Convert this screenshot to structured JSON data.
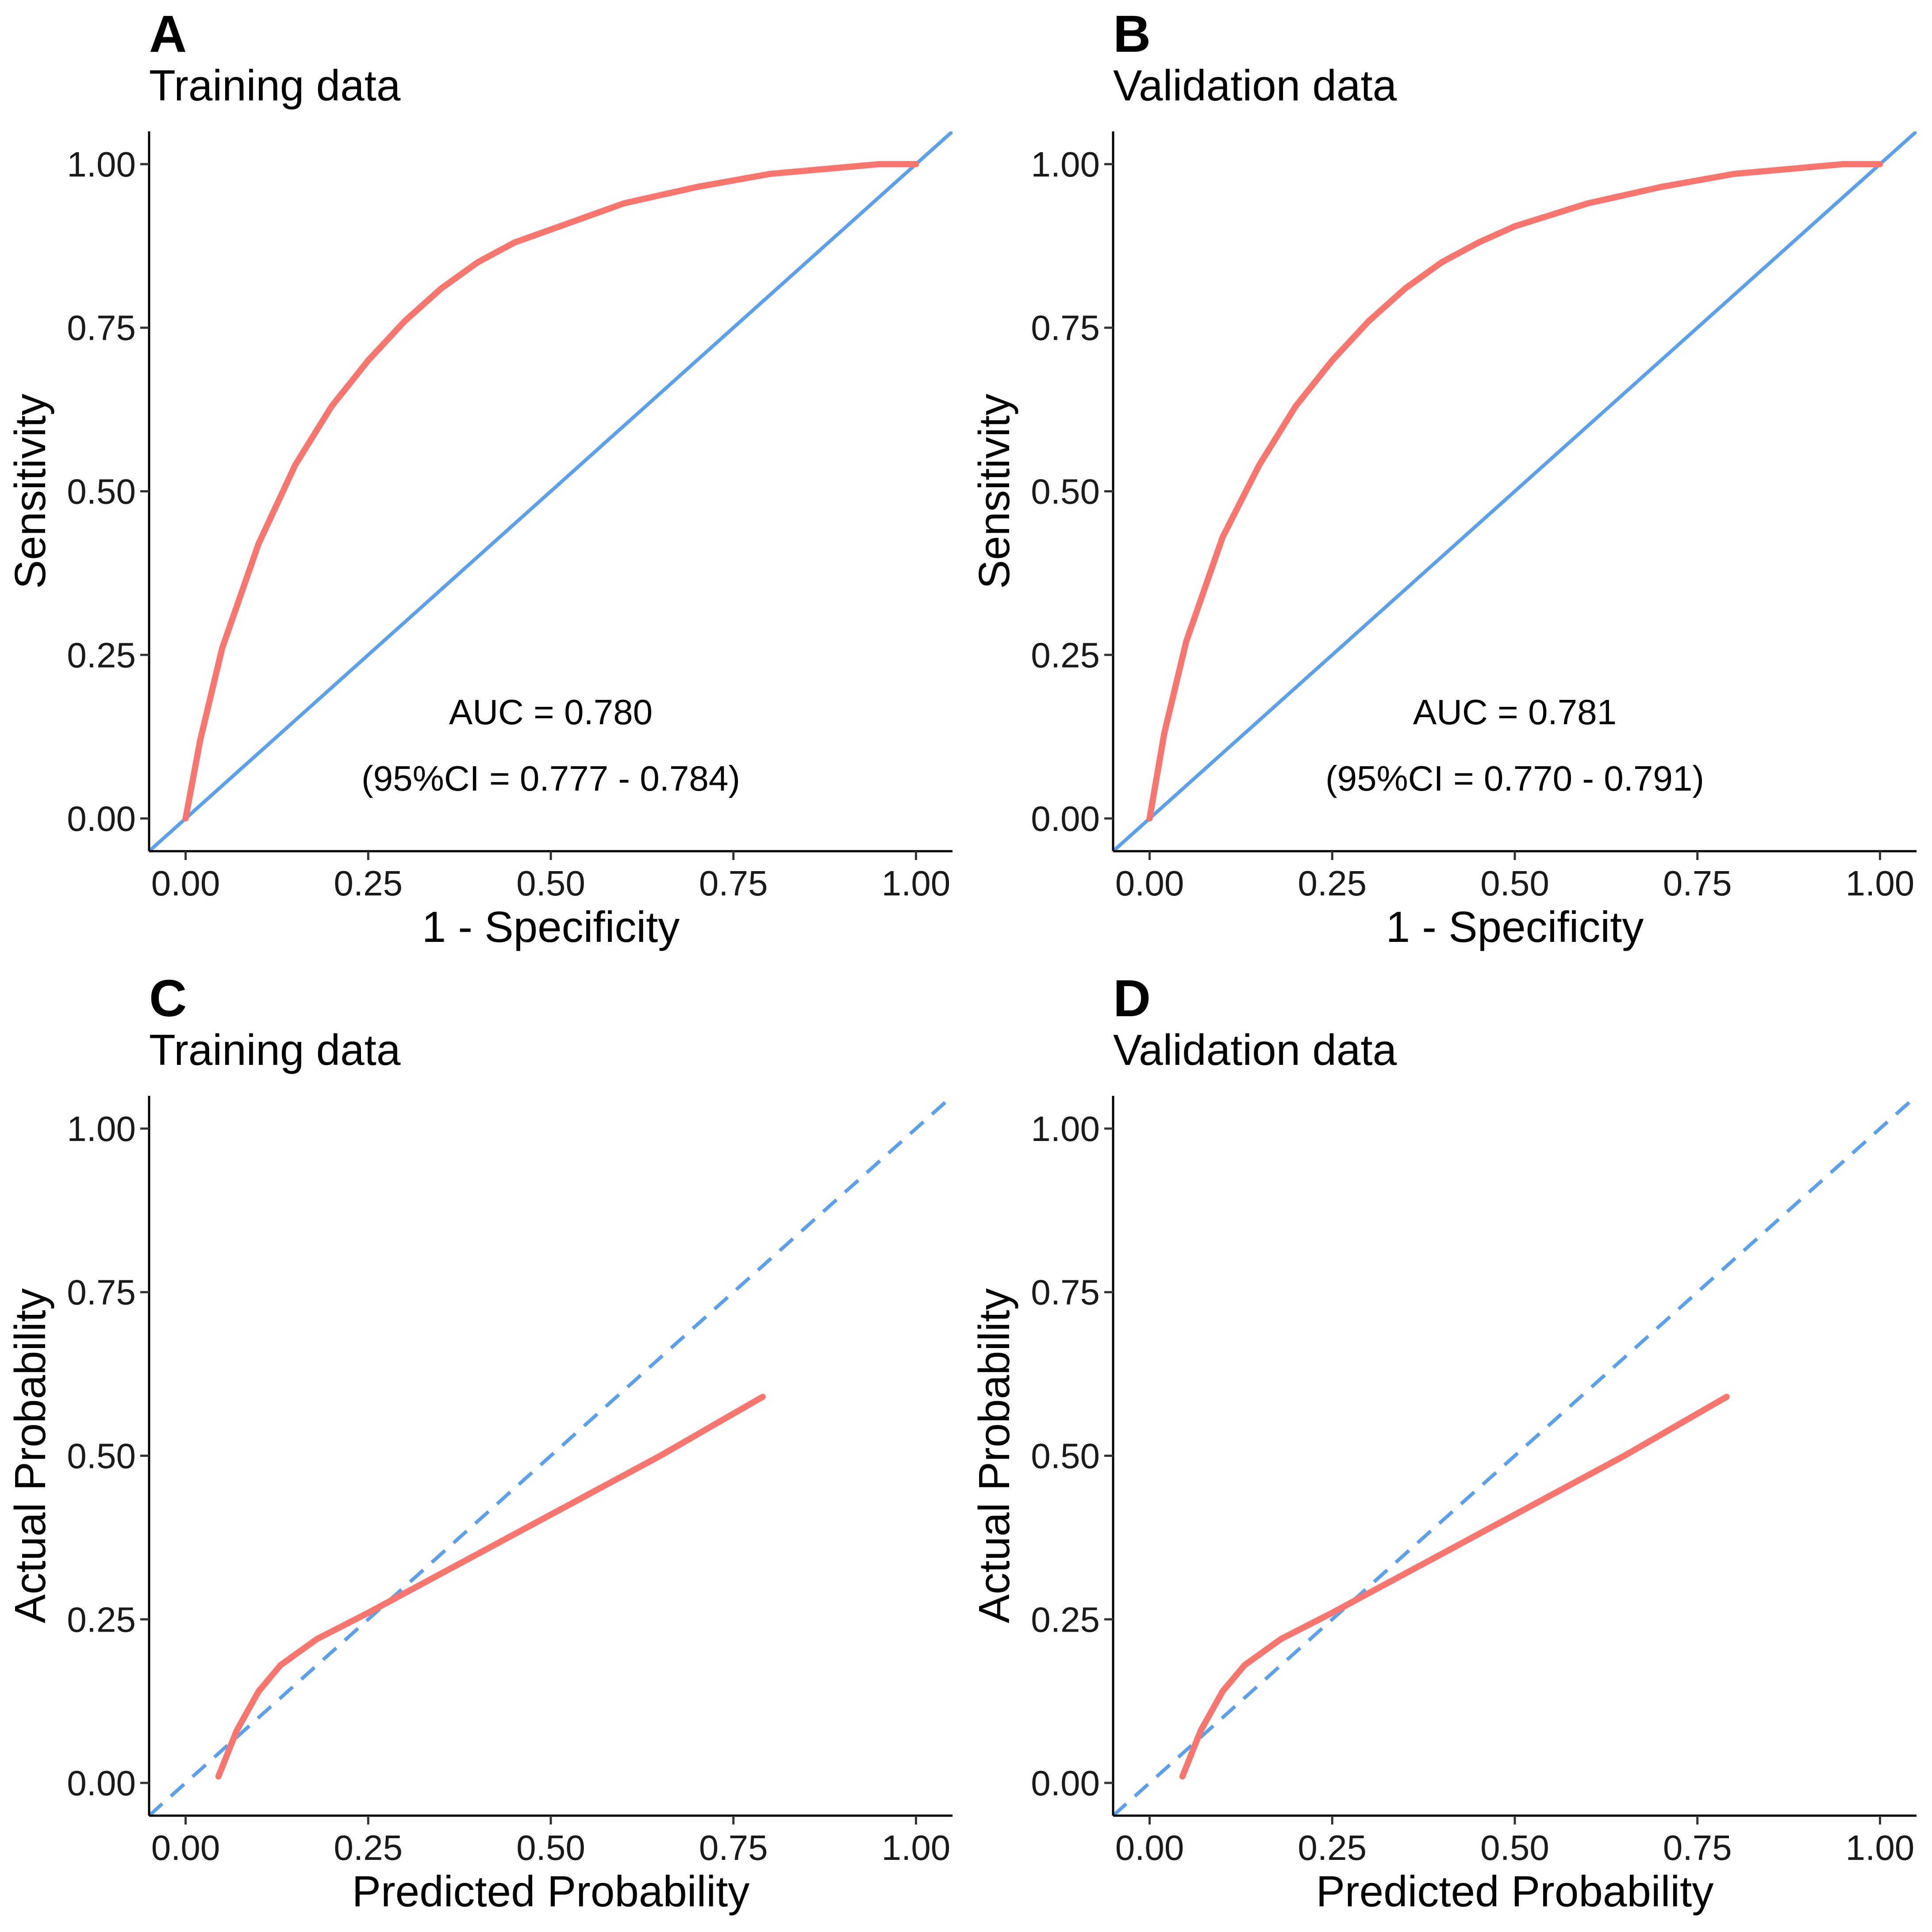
{
  "chart_data": [
    {
      "panel": "A",
      "title": "Training data",
      "type": "line",
      "xlabel": "1 - Specificity",
      "ylabel": "Sensitivity",
      "xlim": [
        -0.05,
        1.05
      ],
      "ylim": [
        -0.05,
        1.05
      ],
      "xticks": [
        "0.00",
        "0.25",
        "0.50",
        "0.75",
        "1.00"
      ],
      "yticks": [
        "0.00",
        "0.25",
        "0.50",
        "0.75",
        "1.00"
      ],
      "annotations": [
        "AUC = 0.780",
        "(95%CI = 0.777 - 0.784)"
      ],
      "reference_line": {
        "style": "solid",
        "x": [
          -0.05,
          1.05
        ],
        "y": [
          -0.05,
          1.05
        ],
        "color": "#5aa0ea"
      },
      "series": [
        {
          "name": "ROC",
          "color": "#f8766d",
          "x": [
            0,
            0.02,
            0.05,
            0.1,
            0.15,
            0.2,
            0.25,
            0.3,
            0.35,
            0.4,
            0.45,
            0.5,
            0.6,
            0.7,
            0.8,
            0.9,
            0.95,
            1.0
          ],
          "y": [
            0,
            0.12,
            0.26,
            0.42,
            0.54,
            0.63,
            0.7,
            0.76,
            0.81,
            0.85,
            0.88,
            0.9,
            0.94,
            0.965,
            0.985,
            0.995,
            1.0,
            1.0
          ]
        }
      ]
    },
    {
      "panel": "B",
      "title": "Validation data",
      "type": "line",
      "xlabel": "1 - Specificity",
      "ylabel": "Sensitivity",
      "xlim": [
        -0.05,
        1.05
      ],
      "ylim": [
        -0.05,
        1.05
      ],
      "xticks": [
        "0.00",
        "0.25",
        "0.50",
        "0.75",
        "1.00"
      ],
      "yticks": [
        "0.00",
        "0.25",
        "0.50",
        "0.75",
        "1.00"
      ],
      "annotations": [
        "AUC = 0.781",
        "(95%CI = 0.770 - 0.791)"
      ],
      "reference_line": {
        "style": "solid",
        "x": [
          -0.05,
          1.05
        ],
        "y": [
          -0.05,
          1.05
        ],
        "color": "#5aa0ea"
      },
      "series": [
        {
          "name": "ROC",
          "color": "#f8766d",
          "x": [
            0,
            0.02,
            0.05,
            0.1,
            0.15,
            0.2,
            0.25,
            0.3,
            0.35,
            0.4,
            0.45,
            0.5,
            0.6,
            0.7,
            0.8,
            0.9,
            0.95,
            1.0
          ],
          "y": [
            0,
            0.13,
            0.27,
            0.43,
            0.54,
            0.63,
            0.7,
            0.76,
            0.81,
            0.85,
            0.88,
            0.905,
            0.94,
            0.965,
            0.985,
            0.995,
            1.0,
            1.0
          ]
        }
      ]
    },
    {
      "panel": "C",
      "title": "Training data",
      "type": "line",
      "xlabel": "Predicted Probability",
      "ylabel": "Actual Probability",
      "xlim": [
        -0.05,
        1.05
      ],
      "ylim": [
        -0.05,
        1.05
      ],
      "xticks": [
        "0.00",
        "0.25",
        "0.50",
        "0.75",
        "1.00"
      ],
      "yticks": [
        "0.00",
        "0.25",
        "0.50",
        "0.75",
        "1.00"
      ],
      "annotations": [],
      "reference_line": {
        "style": "dashed",
        "x": [
          -0.05,
          1.05
        ],
        "y": [
          -0.05,
          1.05
        ],
        "color": "#5aa0ea"
      },
      "series": [
        {
          "name": "Calibration",
          "color": "#f8766d",
          "x": [
            0.045,
            0.07,
            0.1,
            0.13,
            0.18,
            0.25,
            0.35,
            0.5,
            0.65,
            0.79
          ],
          "y": [
            0.01,
            0.08,
            0.14,
            0.18,
            0.22,
            0.26,
            0.32,
            0.41,
            0.5,
            0.59
          ]
        }
      ]
    },
    {
      "panel": "D",
      "title": "Validation data",
      "type": "line",
      "xlabel": "Predicted Probability",
      "ylabel": "Actual Probability",
      "xlim": [
        -0.05,
        1.05
      ],
      "ylim": [
        -0.05,
        1.05
      ],
      "xticks": [
        "0.00",
        "0.25",
        "0.50",
        "0.75",
        "1.00"
      ],
      "yticks": [
        "0.00",
        "0.25",
        "0.50",
        "0.75",
        "1.00"
      ],
      "annotations": [],
      "reference_line": {
        "style": "dashed",
        "x": [
          -0.05,
          1.05
        ],
        "y": [
          -0.05,
          1.05
        ],
        "color": "#5aa0ea"
      },
      "series": [
        {
          "name": "Calibration",
          "color": "#f8766d",
          "x": [
            0.045,
            0.07,
            0.1,
            0.13,
            0.18,
            0.25,
            0.35,
            0.5,
            0.65,
            0.79
          ],
          "y": [
            0.01,
            0.08,
            0.14,
            0.18,
            0.22,
            0.26,
            0.32,
            0.41,
            0.5,
            0.59
          ]
        }
      ]
    }
  ]
}
